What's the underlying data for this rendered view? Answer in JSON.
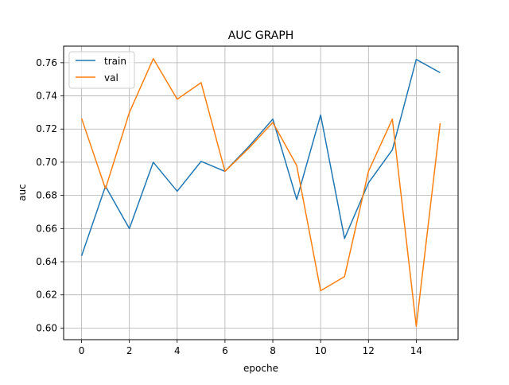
{
  "chart_data": {
    "type": "line",
    "title": "AUC GRAPH",
    "xlabel": "epoche",
    "ylabel": "auc",
    "x": [
      0,
      1,
      2,
      3,
      4,
      5,
      6,
      7,
      8,
      9,
      10,
      11,
      12,
      13,
      14,
      15
    ],
    "xlim": [
      -0.75,
      15.75
    ],
    "ylim": [
      0.593,
      0.77
    ],
    "xticks": [
      0,
      2,
      4,
      6,
      8,
      10,
      12,
      14
    ],
    "yticks": [
      0.6,
      0.62,
      0.64,
      0.66,
      0.68,
      0.7,
      0.72,
      0.74,
      0.76
    ],
    "xtick_labels": [
      "0",
      "2",
      "4",
      "6",
      "8",
      "10",
      "12",
      "14"
    ],
    "ytick_labels": [
      "0.60",
      "0.62",
      "0.64",
      "0.66",
      "0.68",
      "0.70",
      "0.72",
      "0.74",
      "0.76"
    ],
    "grid": true,
    "legend": "top-left",
    "series": [
      {
        "name": "train",
        "color": "#1f77b4",
        "values": [
          0.6435,
          0.6855,
          0.66,
          0.7,
          0.6825,
          0.7005,
          0.6945,
          0.7095,
          0.726,
          0.6775,
          0.7285,
          0.654,
          0.6875,
          0.7075,
          0.762,
          0.754
        ]
      },
      {
        "name": "val",
        "color": "#ff7f0e",
        "values": [
          0.7265,
          0.684,
          0.73,
          0.7625,
          0.738,
          0.748,
          0.6945,
          0.7085,
          0.724,
          0.698,
          0.6225,
          0.631,
          0.6945,
          0.726,
          0.601,
          0.7235
        ]
      }
    ]
  }
}
